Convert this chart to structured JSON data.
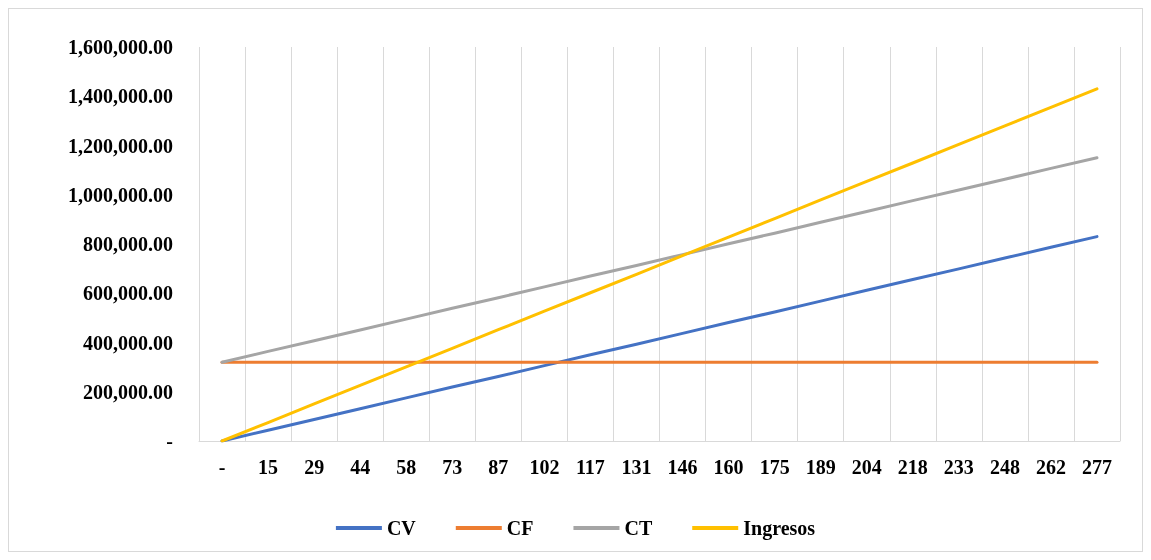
{
  "chart_data": {
    "type": "line",
    "categories": [
      "-",
      "15",
      "29",
      "44",
      "58",
      "73",
      "87",
      "102",
      "117",
      "131",
      "146",
      "160",
      "175",
      "189",
      "204",
      "218",
      "233",
      "248",
      "262",
      "277"
    ],
    "series": [
      {
        "name": "CV",
        "color": "#4472c4",
        "values": [
          0,
          44000,
          87000,
          131000,
          175000,
          219000,
          262000,
          306000,
          350000,
          393000,
          437000,
          481000,
          524000,
          568000,
          612000,
          656000,
          699000,
          743000,
          787000,
          830000
        ]
      },
      {
        "name": "CF",
        "color": "#ed7d31",
        "values": [
          320000,
          320000,
          320000,
          320000,
          320000,
          320000,
          320000,
          320000,
          320000,
          320000,
          320000,
          320000,
          320000,
          320000,
          320000,
          320000,
          320000,
          320000,
          320000,
          320000
        ]
      },
      {
        "name": "CT",
        "color": "#a5a5a5",
        "values": [
          320000,
          364000,
          407000,
          451000,
          495000,
          539000,
          582000,
          626000,
          670000,
          713000,
          757000,
          801000,
          844000,
          888000,
          932000,
          976000,
          1019000,
          1063000,
          1107000,
          1150000
        ]
      },
      {
        "name": "Ingresos",
        "color": "#ffc000",
        "values": [
          0,
          75000,
          151000,
          226000,
          301000,
          376000,
          452000,
          527000,
          602000,
          677000,
          753000,
          828000,
          903000,
          979000,
          1054000,
          1129000,
          1205000,
          1280000,
          1355000,
          1430000
        ]
      }
    ],
    "ylim": [
      0,
      1600000
    ],
    "yticks": [
      {
        "value": 0,
        "label": "-"
      },
      {
        "value": 200000,
        "label": "200,000.00"
      },
      {
        "value": 400000,
        "label": "400,000.00"
      },
      {
        "value": 600000,
        "label": "600,000.00"
      },
      {
        "value": 800000,
        "label": "800,000.00"
      },
      {
        "value": 1000000,
        "label": "1,000,000.00"
      },
      {
        "value": 1200000,
        "label": "1,200,000.00"
      },
      {
        "value": 1400000,
        "label": "1,400,000.00"
      },
      {
        "value": 1600000,
        "label": "1,600,000.00"
      }
    ],
    "grid": "x",
    "legend": "bottom",
    "marker": "none",
    "line_style": "solid"
  }
}
